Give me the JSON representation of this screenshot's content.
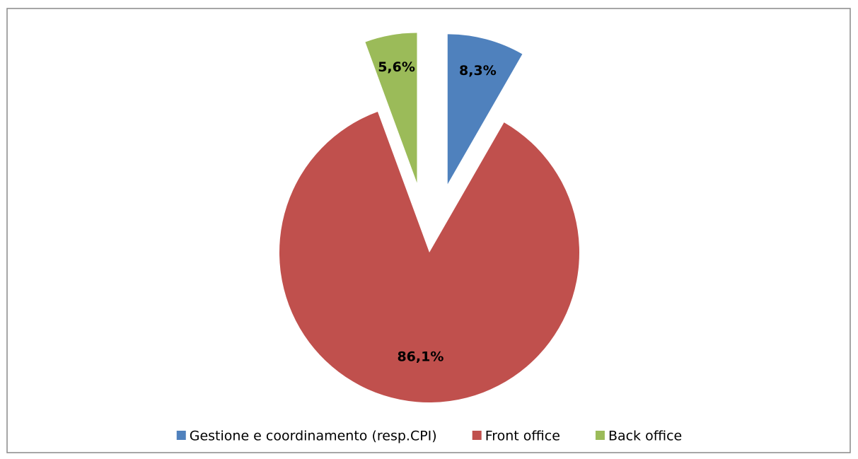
{
  "chart_data": {
    "type": "pie",
    "categories": [
      "Gestione e coordinamento (resp.CPI)",
      "Front office",
      "Back office"
    ],
    "values": [
      8.3,
      86.1,
      5.6
    ],
    "value_labels": [
      "8,3%",
      "86,1%",
      "5,6%"
    ],
    "colors": [
      "#4f81bd",
      "#c0504d",
      "#9bbb59"
    ],
    "legend": "bottom"
  }
}
